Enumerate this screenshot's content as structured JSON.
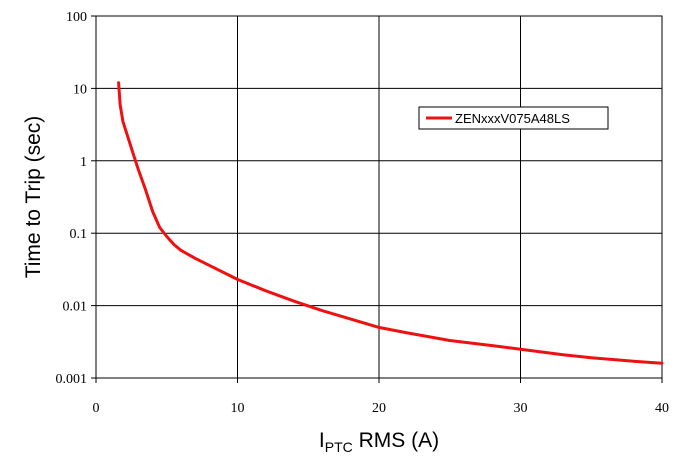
{
  "chart_data": {
    "type": "line",
    "title": "",
    "xlabel": {
      "main": "I",
      "sub": "PTC",
      "rest": " RMS (A)"
    },
    "ylabel": "Time to Trip (sec)",
    "x_scale": "linear",
    "y_scale": "log",
    "xlim": [
      0,
      40
    ],
    "ylim": [
      0.001,
      100
    ],
    "x_ticks": [
      "0",
      "10",
      "20",
      "30",
      "40"
    ],
    "y_ticks": [
      "0.001",
      "0.01",
      "0.1",
      "1",
      "10",
      "100"
    ],
    "grid": true,
    "legend_position": "top-right",
    "series": [
      {
        "name": "ZENxxxV075A48LS",
        "color": "#ee1111",
        "x": [
          1.6,
          1.7,
          1.9,
          2.2,
          2.6,
          3.0,
          3.5,
          4.0,
          4.5,
          5.0,
          5.5,
          6.0,
          7.0,
          8.0,
          10.0,
          12.0,
          14.0,
          16.0,
          18.0,
          20.0,
          22.0,
          25.0,
          28.0,
          30.0,
          33.0,
          35.0,
          38.0,
          40.0
        ],
        "y": [
          12,
          6,
          3.5,
          2.3,
          1.3,
          0.75,
          0.4,
          0.2,
          0.12,
          0.09,
          0.07,
          0.058,
          0.045,
          0.036,
          0.023,
          0.016,
          0.0115,
          0.0085,
          0.0065,
          0.005,
          0.0042,
          0.0033,
          0.0028,
          0.0025,
          0.0021,
          0.0019,
          0.0017,
          0.0016
        ]
      }
    ]
  }
}
